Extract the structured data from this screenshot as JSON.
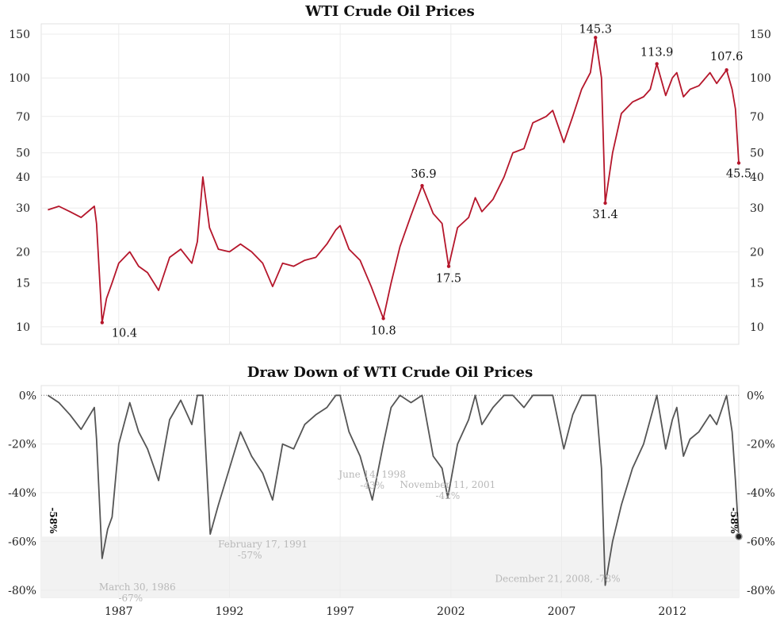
{
  "colors": {
    "price": "#b5162b",
    "drawdown": "#555555",
    "grid": "#ececec",
    "band": "#f2f2f2",
    "annotation": "#b8b8b8"
  },
  "chart_data": [
    {
      "type": "line",
      "title": "WTI Crude Oil Prices",
      "y_scale": "log",
      "ylim": [
        8.5,
        165
      ],
      "x_range": [
        1983.5,
        2015.0
      ],
      "x_ticks": [
        1987,
        1992,
        1997,
        2002,
        2007,
        2012
      ],
      "x_tick_labels": [
        "1987",
        "1992",
        "1997",
        "2002",
        "2007",
        "2012"
      ],
      "y_ticks": [
        10,
        15,
        20,
        30,
        40,
        50,
        70,
        100,
        150
      ],
      "y_tick_labels": [
        "10",
        "15",
        "20",
        "30",
        "40",
        "50",
        "70",
        "100",
        "150"
      ],
      "series": [
        {
          "x": [
            1983.8,
            1984.3,
            1984.8,
            1985.3,
            1985.9,
            1986.0,
            1986.25,
            1986.45,
            1986.7,
            1987.0,
            1987.5,
            1987.9,
            1988.3,
            1988.8,
            1989.3,
            1989.8,
            1990.3,
            1990.55,
            1990.8,
            1991.1,
            1991.5,
            1992.0,
            1992.5,
            1993.0,
            1993.5,
            1993.95,
            1994.4,
            1994.9,
            1995.4,
            1995.9,
            1996.4,
            1996.8,
            1997.0,
            1997.4,
            1997.9,
            1998.4,
            1998.95,
            1999.3,
            1999.7,
            2000.2,
            2000.7,
            2001.2,
            2001.6,
            2001.9,
            2002.3,
            2002.8,
            2003.1,
            2003.4,
            2003.9,
            2004.4,
            2004.8,
            2005.3,
            2005.7,
            2006.3,
            2006.6,
            2007.1,
            2007.5,
            2007.9,
            2008.3,
            2008.53,
            2008.8,
            2008.97,
            2009.3,
            2009.7,
            2010.2,
            2010.7,
            2011.0,
            2011.3,
            2011.7,
            2012.0,
            2012.2,
            2012.5,
            2012.8,
            2013.2,
            2013.7,
            2014.0,
            2014.45,
            2014.7,
            2014.85,
            2015.0
          ],
          "y": [
            29.5,
            30.5,
            29.0,
            27.5,
            30.5,
            26.0,
            10.4,
            13.0,
            15.0,
            18.0,
            20.0,
            17.5,
            16.5,
            14.0,
            19.0,
            20.5,
            18.0,
            22.0,
            40.0,
            25.0,
            20.5,
            20.0,
            21.5,
            20.0,
            18.0,
            14.5,
            18.0,
            17.5,
            18.5,
            19.0,
            21.5,
            24.5,
            25.5,
            20.5,
            18.5,
            14.5,
            10.8,
            15.0,
            21.0,
            28.0,
            36.9,
            28.5,
            26.0,
            17.5,
            25.0,
            27.5,
            33.0,
            29.0,
            32.5,
            40.0,
            50.0,
            52.0,
            66.0,
            70.0,
            74.0,
            55.0,
            70.0,
            90.0,
            105.0,
            145.3,
            100.0,
            31.4,
            50.0,
            72.0,
            80.0,
            84.0,
            90.0,
            113.9,
            85.0,
            100.0,
            105.0,
            84.0,
            90.0,
            93.0,
            105.0,
            95.0,
            107.6,
            90.0,
            75.0,
            45.5
          ]
        }
      ],
      "annotations": [
        {
          "x": 1986.25,
          "y": 10.4,
          "text": "10.4"
        },
        {
          "x": 1998.95,
          "y": 10.8,
          "text": "10.8"
        },
        {
          "x": 2000.7,
          "y": 36.9,
          "text": "36.9"
        },
        {
          "x": 2001.9,
          "y": 17.5,
          "text": "17.5"
        },
        {
          "x": 2008.53,
          "y": 145.3,
          "text": "145.3"
        },
        {
          "x": 2008.97,
          "y": 31.4,
          "text": "31.4"
        },
        {
          "x": 2011.3,
          "y": 113.9,
          "text": "113.9"
        },
        {
          "x": 2014.45,
          "y": 107.6,
          "text": "107.6"
        },
        {
          "x": 2015.0,
          "y": 45.5,
          "text": "45.5"
        }
      ]
    },
    {
      "type": "area",
      "title": "Draw Down of WTI Crude Oil Prices",
      "ylim": [
        -83,
        4
      ],
      "x_range": [
        1983.5,
        2015.0
      ],
      "x_ticks": [
        1987,
        1992,
        1997,
        2002,
        2007,
        2012
      ],
      "x_tick_labels": [
        "1987",
        "1992",
        "1997",
        "2002",
        "2007",
        "2012"
      ],
      "y_ticks": [
        0,
        -20,
        -40,
        -60,
        -80
      ],
      "y_tick_labels": [
        "0%",
        "-20%",
        "-40%",
        "-60%",
        "-80%"
      ],
      "threshold": -58,
      "threshold_label": "-58%",
      "series": [
        {
          "x": [
            1983.8,
            1984.3,
            1984.8,
            1985.3,
            1985.9,
            1986.0,
            1986.25,
            1986.5,
            1986.7,
            1987.0,
            1987.5,
            1987.9,
            1988.3,
            1988.8,
            1989.3,
            1989.8,
            1990.3,
            1990.55,
            1990.8,
            1991.13,
            1991.5,
            1992.0,
            1992.5,
            1993.0,
            1993.5,
            1993.95,
            1994.4,
            1994.9,
            1995.4,
            1995.9,
            1996.4,
            1996.8,
            1997.0,
            1997.4,
            1997.9,
            1998.45,
            1998.95,
            1999.3,
            1999.7,
            2000.2,
            2000.7,
            2001.2,
            2001.6,
            2001.86,
            2002.3,
            2002.8,
            2003.1,
            2003.4,
            2003.9,
            2004.4,
            2004.8,
            2005.3,
            2005.7,
            2006.3,
            2006.6,
            2007.1,
            2007.5,
            2007.9,
            2008.3,
            2008.53,
            2008.8,
            2008.97,
            2009.3,
            2009.7,
            2010.2,
            2010.7,
            2011.0,
            2011.3,
            2011.7,
            2012.0,
            2012.2,
            2012.5,
            2012.8,
            2013.2,
            2013.7,
            2014.0,
            2014.45,
            2014.7,
            2014.85,
            2015.0
          ],
          "y": [
            0,
            -3,
            -8,
            -14,
            -5,
            -18,
            -67,
            -55,
            -50,
            -20,
            -3,
            -15,
            -22,
            -35,
            -10,
            -2,
            -12,
            0,
            0,
            -57,
            -45,
            -30,
            -15,
            -25,
            -32,
            -43,
            -20,
            -22,
            -12,
            -8,
            -5,
            0,
            0,
            -15,
            -25,
            -43,
            -20,
            -5,
            0,
            -3,
            0,
            -25,
            -30,
            -42,
            -20,
            -10,
            0,
            -12,
            -5,
            0,
            0,
            -5,
            0,
            0,
            0,
            -22,
            -8,
            0,
            0,
            0,
            -30,
            -78,
            -60,
            -45,
            -30,
            -20,
            -10,
            0,
            -22,
            -10,
            -5,
            -25,
            -18,
            -15,
            -8,
            -12,
            0,
            -15,
            -35,
            -58
          ]
        }
      ],
      "annotations": [
        {
          "x": 1986.25,
          "y": -67,
          "lines": [
            "March 30, 1986",
            "-67%"
          ]
        },
        {
          "x": 1991.13,
          "y": -57,
          "lines": [
            "February 17, 1991",
            "-57%"
          ]
        },
        {
          "x": 1998.45,
          "y": -43,
          "lines": [
            "June 14, 1998",
            "-43%"
          ]
        },
        {
          "x": 2001.86,
          "y": -42,
          "lines": [
            "November 11, 2001",
            "-42%"
          ]
        },
        {
          "x": 2008.97,
          "y": -78,
          "lines": [
            "December 21, 2008, -78%"
          ]
        }
      ]
    }
  ]
}
